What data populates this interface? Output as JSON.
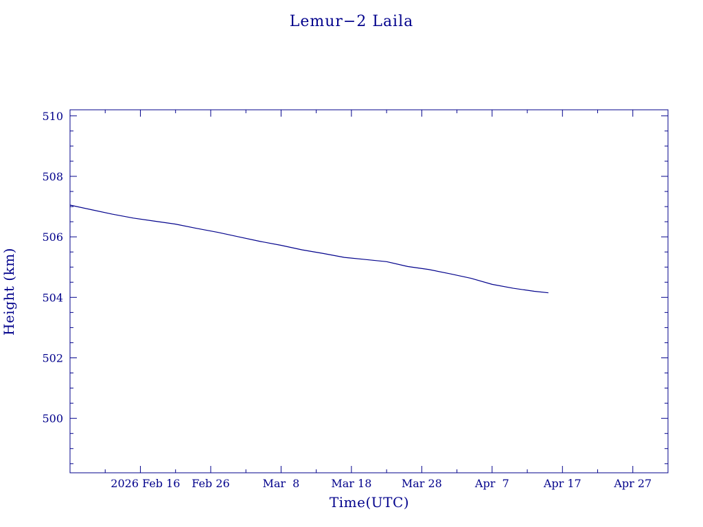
{
  "chart_data": {
    "type": "line",
    "title": "Lemur−2 Laila",
    "xlabel": "Time(UTC)",
    "ylabel": "Height (km)",
    "xlim": [
      "2026-02-06",
      "2026-05-02"
    ],
    "ylim": [
      498.2,
      510.2
    ],
    "x_ticks": [
      {
        "date": "2026-02-16",
        "label": "2026 Feb 16"
      },
      {
        "date": "2026-02-26",
        "label": "Feb 26"
      },
      {
        "date": "2026-03-08",
        "label": "Mar  8"
      },
      {
        "date": "2026-03-18",
        "label": "Mar 18"
      },
      {
        "date": "2026-03-28",
        "label": "Mar 28"
      },
      {
        "date": "2026-04-07",
        "label": "Apr  7"
      },
      {
        "date": "2026-04-17",
        "label": "Apr 17"
      },
      {
        "date": "2026-04-27",
        "label": "Apr 27"
      }
    ],
    "y_ticks": [
      500,
      502,
      504,
      506,
      508,
      510
    ],
    "grid": false,
    "series": [
      {
        "color": "#00008b",
        "points": [
          [
            "2026-02-06",
            507.05
          ],
          [
            "2026-02-09",
            506.9
          ],
          [
            "2026-02-12",
            506.75
          ],
          [
            "2026-02-15",
            506.62
          ],
          [
            "2026-02-18",
            506.52
          ],
          [
            "2026-02-21",
            506.42
          ],
          [
            "2026-02-24",
            506.28
          ],
          [
            "2026-02-27",
            506.15
          ],
          [
            "2026-03-02",
            506.0
          ],
          [
            "2026-03-05",
            505.85
          ],
          [
            "2026-03-08",
            505.72
          ],
          [
            "2026-03-11",
            505.57
          ],
          [
            "2026-03-14",
            505.45
          ],
          [
            "2026-03-17",
            505.32
          ],
          [
            "2026-03-20",
            505.25
          ],
          [
            "2026-03-23",
            505.18
          ],
          [
            "2026-03-26",
            505.02
          ],
          [
            "2026-03-29",
            504.92
          ],
          [
            "2026-04-01",
            504.78
          ],
          [
            "2026-04-04",
            504.63
          ],
          [
            "2026-04-07",
            504.43
          ],
          [
            "2026-04-10",
            504.3
          ],
          [
            "2026-04-13",
            504.2
          ],
          [
            "2026-04-15",
            504.15
          ]
        ]
      }
    ]
  }
}
